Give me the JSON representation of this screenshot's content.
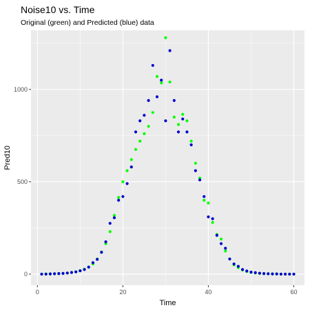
{
  "chart_data": {
    "type": "scatter",
    "title": "Noise10 vs. Time",
    "subtitle": "Original (green) and Predicted (blue) data",
    "xlabel": "Time",
    "ylabel": "Pred10",
    "xlim": [
      -1.5,
      62.5
    ],
    "ylim": [
      -60,
      1320
    ],
    "x_ticks": [
      0,
      20,
      40,
      60
    ],
    "x_tick_labels": [
      "0",
      "20",
      "40",
      "60"
    ],
    "y_ticks": [
      0,
      500,
      1000
    ],
    "y_tick_labels": [
      "0",
      "500",
      "1000"
    ],
    "grid": true,
    "legend": "none",
    "colors": {
      "original": "#00ff00",
      "predicted": "#0000cd",
      "panel": "#ebebeb",
      "grid": "#ffffff"
    },
    "series": [
      {
        "key": "original",
        "x": [
          1,
          2,
          3,
          4,
          5,
          6,
          7,
          8,
          9,
          10,
          11,
          12,
          13,
          14,
          15,
          16,
          17,
          18,
          19,
          20,
          21,
          22,
          23,
          24,
          25,
          26,
          27,
          28,
          29,
          30,
          31,
          32,
          33,
          34,
          35,
          36,
          37,
          38,
          39,
          40,
          41,
          42,
          43,
          44,
          45,
          46,
          47,
          48,
          49,
          50,
          51,
          52,
          53,
          54,
          55,
          56,
          57,
          58,
          59,
          60
        ],
        "y": [
          0,
          1,
          1,
          2,
          3,
          4,
          6,
          9,
          13,
          19,
          27,
          38,
          55,
          82,
          120,
          165,
          230,
          318,
          415,
          500,
          560,
          620,
          675,
          720,
          760,
          800,
          875,
          1070,
          1035,
          1280,
          1040,
          850,
          810,
          865,
          830,
          720,
          600,
          520,
          400,
          385,
          280,
          215,
          190,
          125,
          82,
          50,
          35,
          22,
          14,
          9,
          6,
          4,
          3,
          2,
          1,
          1,
          0,
          0,
          0,
          0
        ]
      },
      {
        "key": "predicted",
        "x": [
          1,
          2,
          3,
          4,
          5,
          6,
          7,
          8,
          9,
          10,
          11,
          12,
          13,
          14,
          15,
          16,
          17,
          18,
          19,
          20,
          21,
          22,
          23,
          24,
          25,
          26,
          27,
          28,
          29,
          30,
          31,
          32,
          33,
          34,
          35,
          36,
          37,
          38,
          39,
          40,
          41,
          42,
          43,
          44,
          45,
          46,
          47,
          48,
          49,
          50,
          51,
          52,
          53,
          54,
          55,
          56,
          57,
          58,
          59,
          60
        ],
        "y": [
          0,
          0,
          1,
          2,
          3,
          4,
          6,
          9,
          12,
          18,
          25,
          38,
          62,
          80,
          118,
          175,
          275,
          305,
          400,
          420,
          490,
          580,
          770,
          830,
          860,
          940,
          1130,
          960,
          1050,
          830,
          1210,
          940,
          770,
          840,
          770,
          700,
          560,
          510,
          420,
          310,
          300,
          210,
          165,
          140,
          82,
          55,
          42,
          25,
          17,
          11,
          8,
          5,
          3,
          2,
          1,
          1,
          0,
          0,
          0,
          0
        ]
      }
    ]
  }
}
